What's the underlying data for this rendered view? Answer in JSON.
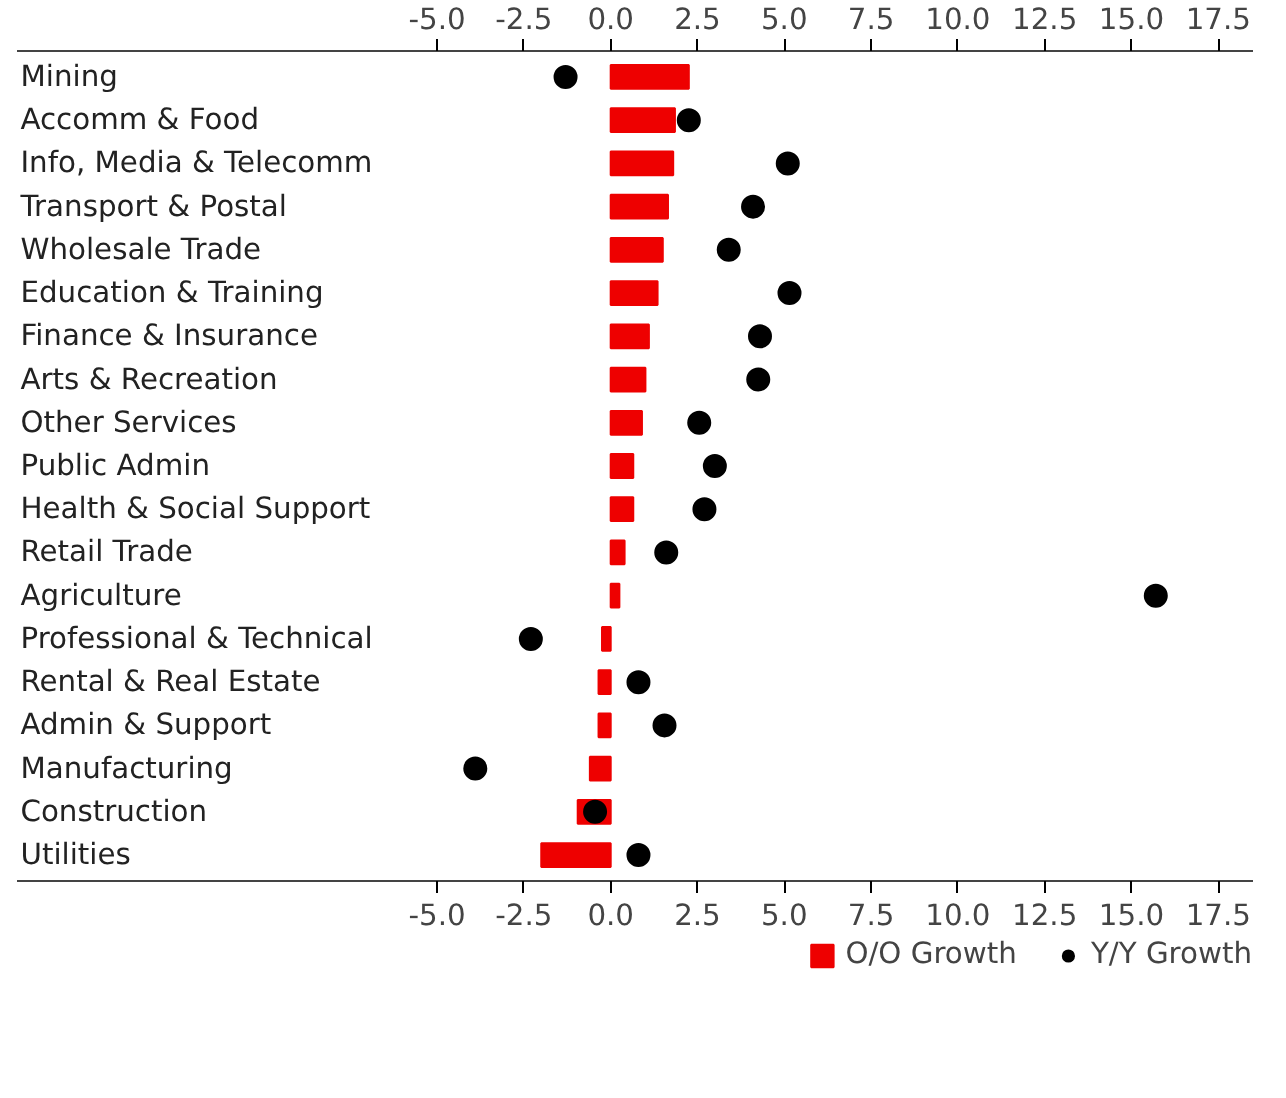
{
  "chart_data": {
    "type": "bar",
    "orientation": "horizontal",
    "categories": [
      "Mining",
      "Accomm & Food",
      "Info, Media & Telecomm",
      "Transport & Postal",
      "Wholesale Trade",
      "Education & Training",
      "Finance & Insurance",
      "Arts & Recreation",
      "Other Services",
      "Public Admin",
      "Health & Social Support",
      "Retail Trade",
      "Agriculture",
      "Professional & Technical",
      "Rental & Real Estate",
      "Admin & Support",
      "Manufacturing",
      "Construction",
      "Utilities"
    ],
    "series": [
      {
        "name": "O/O Growth",
        "color": "#ee0000",
        "values": [
          2.25,
          1.85,
          1.8,
          1.65,
          1.5,
          1.35,
          1.1,
          1.0,
          0.9,
          0.65,
          0.65,
          0.4,
          0.25,
          -0.25,
          -0.35,
          -0.35,
          -0.6,
          -0.95,
          -2.0
        ]
      },
      {
        "name": "Y/Y Growth",
        "type": "scatter",
        "color": "#000000",
        "values": [
          -1.3,
          2.25,
          5.1,
          4.1,
          3.4,
          5.15,
          4.3,
          4.25,
          2.55,
          3.0,
          2.7,
          1.6,
          15.7,
          -2.3,
          0.8,
          1.55,
          -3.9,
          -0.45,
          0.8
        ]
      }
    ],
    "xlim": [
      -17.1,
      18.5
    ],
    "xticks": [
      {
        "value": -5,
        "label": "-5.0"
      },
      {
        "value": -2.5,
        "label": "-2.5"
      },
      {
        "value": 0,
        "label": "0.0"
      },
      {
        "value": 2.5,
        "label": "2.5"
      },
      {
        "value": 5,
        "label": "5.0"
      },
      {
        "value": 7.5,
        "label": "7.5"
      },
      {
        "value": 10,
        "label": "10.0"
      },
      {
        "value": 12.5,
        "label": "12.5"
      },
      {
        "value": 15,
        "label": "15.0"
      },
      {
        "value": 17.5,
        "label": "17.5"
      }
    ],
    "x2lim": [
      -17.1,
      18.5
    ],
    "x2ticks": [
      {
        "value": -5,
        "label": "-5.0"
      },
      {
        "value": -2.5,
        "label": "-2.5"
      },
      {
        "value": 0,
        "label": "0.0"
      },
      {
        "value": 2.5,
        "label": "2.5"
      },
      {
        "value": 5,
        "label": "5.0"
      },
      {
        "value": 7.5,
        "label": "7.5"
      },
      {
        "value": 10,
        "label": "10.0"
      },
      {
        "value": 12.5,
        "label": "12.5"
      },
      {
        "value": 15,
        "label": "15.0"
      },
      {
        "value": 17.5,
        "label": "17.5"
      }
    ],
    "marker": "circle",
    "grid": false,
    "legend": "bottom right"
  }
}
